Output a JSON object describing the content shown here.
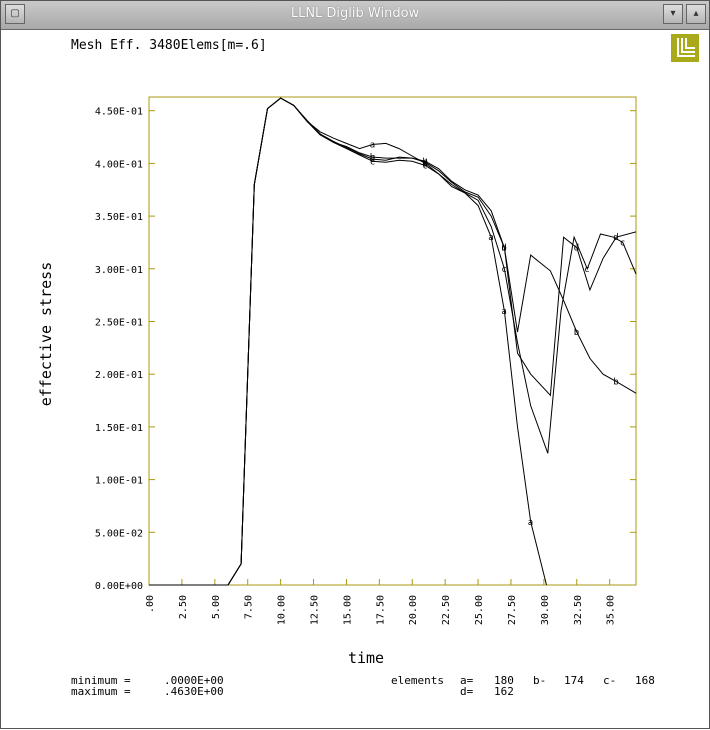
{
  "window": {
    "title": "LLNL Diglib Window",
    "menu_button": "▢",
    "minimize_button": "▾",
    "maximize_button": "▴"
  },
  "logo": {
    "icon": "llnl-logo-icon",
    "color": "#a8aa1a"
  },
  "chart_data": {
    "type": "line",
    "title": "Mesh Eff. 3480Elems[m=.6]",
    "xlabel": "time",
    "ylabel": "effective stress",
    "xlim": [
      0,
      37
    ],
    "ylim": [
      0,
      0.463
    ],
    "grid": false,
    "axis_color": "#a89a10",
    "x_tick_values": [
      0,
      2.5,
      5,
      7.5,
      10,
      12.5,
      15,
      17.5,
      20,
      22.5,
      25,
      27.5,
      30,
      32.5,
      35
    ],
    "x_tick_labels": [
      ".00",
      "2.50",
      "5.00",
      "7.50",
      "10.00",
      "12.50",
      "15.00",
      "17.50",
      "20.00",
      "22.50",
      "25.00",
      "27.50",
      "30.00",
      "32.50",
      "35.00"
    ],
    "y_tick_values": [
      0,
      0.05,
      0.1,
      0.15,
      0.2,
      0.25,
      0.3,
      0.35,
      0.4,
      0.45
    ],
    "y_tick_labels": [
      "0.00E+00",
      "5.00E-02",
      "1.00E-01",
      "1.50E-01",
      "2.00E-01",
      "2.50E-01",
      "3.00E-01",
      "3.50E-01",
      "4.00E-01",
      "4.50E-01"
    ],
    "series": [
      {
        "name": "a",
        "x": [
          0,
          5,
          6,
          7,
          8,
          9,
          10,
          11,
          12,
          13,
          14,
          15,
          16,
          17,
          18,
          19,
          20,
          21,
          22,
          23,
          24,
          25,
          26,
          27,
          28,
          29,
          30.2
        ],
        "y": [
          0,
          0,
          0,
          0.02,
          0.38,
          0.452,
          0.462,
          0.455,
          0.44,
          0.43,
          0.424,
          0.419,
          0.414,
          0.418,
          0.419,
          0.414,
          0.407,
          0.4,
          0.39,
          0.378,
          0.372,
          0.36,
          0.33,
          0.26,
          0.15,
          0.06,
          0
        ]
      },
      {
        "name": "b",
        "x": [
          0,
          5,
          6,
          7,
          8,
          9,
          10,
          11,
          12,
          13,
          14,
          15,
          16,
          17,
          18,
          19,
          20,
          21,
          22,
          23,
          24,
          25,
          26,
          27,
          28,
          29,
          30.5,
          31.5,
          32.5,
          33.5,
          34.5,
          35.5,
          37
        ],
        "y": [
          0,
          0,
          0,
          0.02,
          0.38,
          0.452,
          0.462,
          0.455,
          0.441,
          0.428,
          0.42,
          0.416,
          0.41,
          0.406,
          0.405,
          0.405,
          0.405,
          0.402,
          0.395,
          0.383,
          0.375,
          0.37,
          0.355,
          0.32,
          0.24,
          0.313,
          0.298,
          0.27,
          0.24,
          0.215,
          0.2,
          0.193,
          0.182
        ]
      },
      {
        "name": "c",
        "x": [
          0,
          5,
          6,
          7,
          8,
          9,
          10,
          11,
          12,
          13,
          14,
          15,
          16,
          17,
          18,
          19,
          20,
          21,
          22,
          23,
          24,
          25,
          26,
          27,
          28,
          29,
          30.3,
          31.3,
          32.3,
          33.3,
          34.3,
          35.3,
          36,
          37
        ],
        "y": [
          0,
          0,
          0,
          0.02,
          0.38,
          0.452,
          0.462,
          0.455,
          0.44,
          0.427,
          0.42,
          0.414,
          0.408,
          0.402,
          0.401,
          0.403,
          0.402,
          0.398,
          0.39,
          0.38,
          0.372,
          0.365,
          0.34,
          0.3,
          0.23,
          0.17,
          0.125,
          0.26,
          0.33,
          0.3,
          0.333,
          0.33,
          0.325,
          0.295
        ]
      },
      {
        "name": "d",
        "x": [
          0,
          5,
          6,
          7,
          8,
          9,
          10,
          11,
          12,
          13,
          14,
          15,
          16,
          17,
          18,
          19,
          20,
          21,
          22,
          23,
          24,
          25,
          26,
          27,
          28,
          29,
          30.5,
          31.5,
          32.5,
          33.5,
          34.5,
          35.5,
          37
        ],
        "y": [
          0,
          0,
          0,
          0.02,
          0.38,
          0.452,
          0.462,
          0.455,
          0.44,
          0.428,
          0.421,
          0.415,
          0.409,
          0.404,
          0.403,
          0.406,
          0.405,
          0.401,
          0.393,
          0.382,
          0.373,
          0.368,
          0.35,
          0.32,
          0.22,
          0.2,
          0.18,
          0.33,
          0.32,
          0.28,
          0.31,
          0.33,
          0.335
        ]
      }
    ]
  },
  "footer": {
    "minimum_label": "minimum =",
    "minimum_value": ".0000E+00",
    "maximum_label": "maximum =",
    "maximum_value": ".4630E+00",
    "elements_label": "elements",
    "a_label": "a=",
    "a_value": "180",
    "b_label": "b-",
    "b_value": "174",
    "c_label": "c-",
    "c_value": "168",
    "d_label": "d=",
    "d_value": "162"
  }
}
